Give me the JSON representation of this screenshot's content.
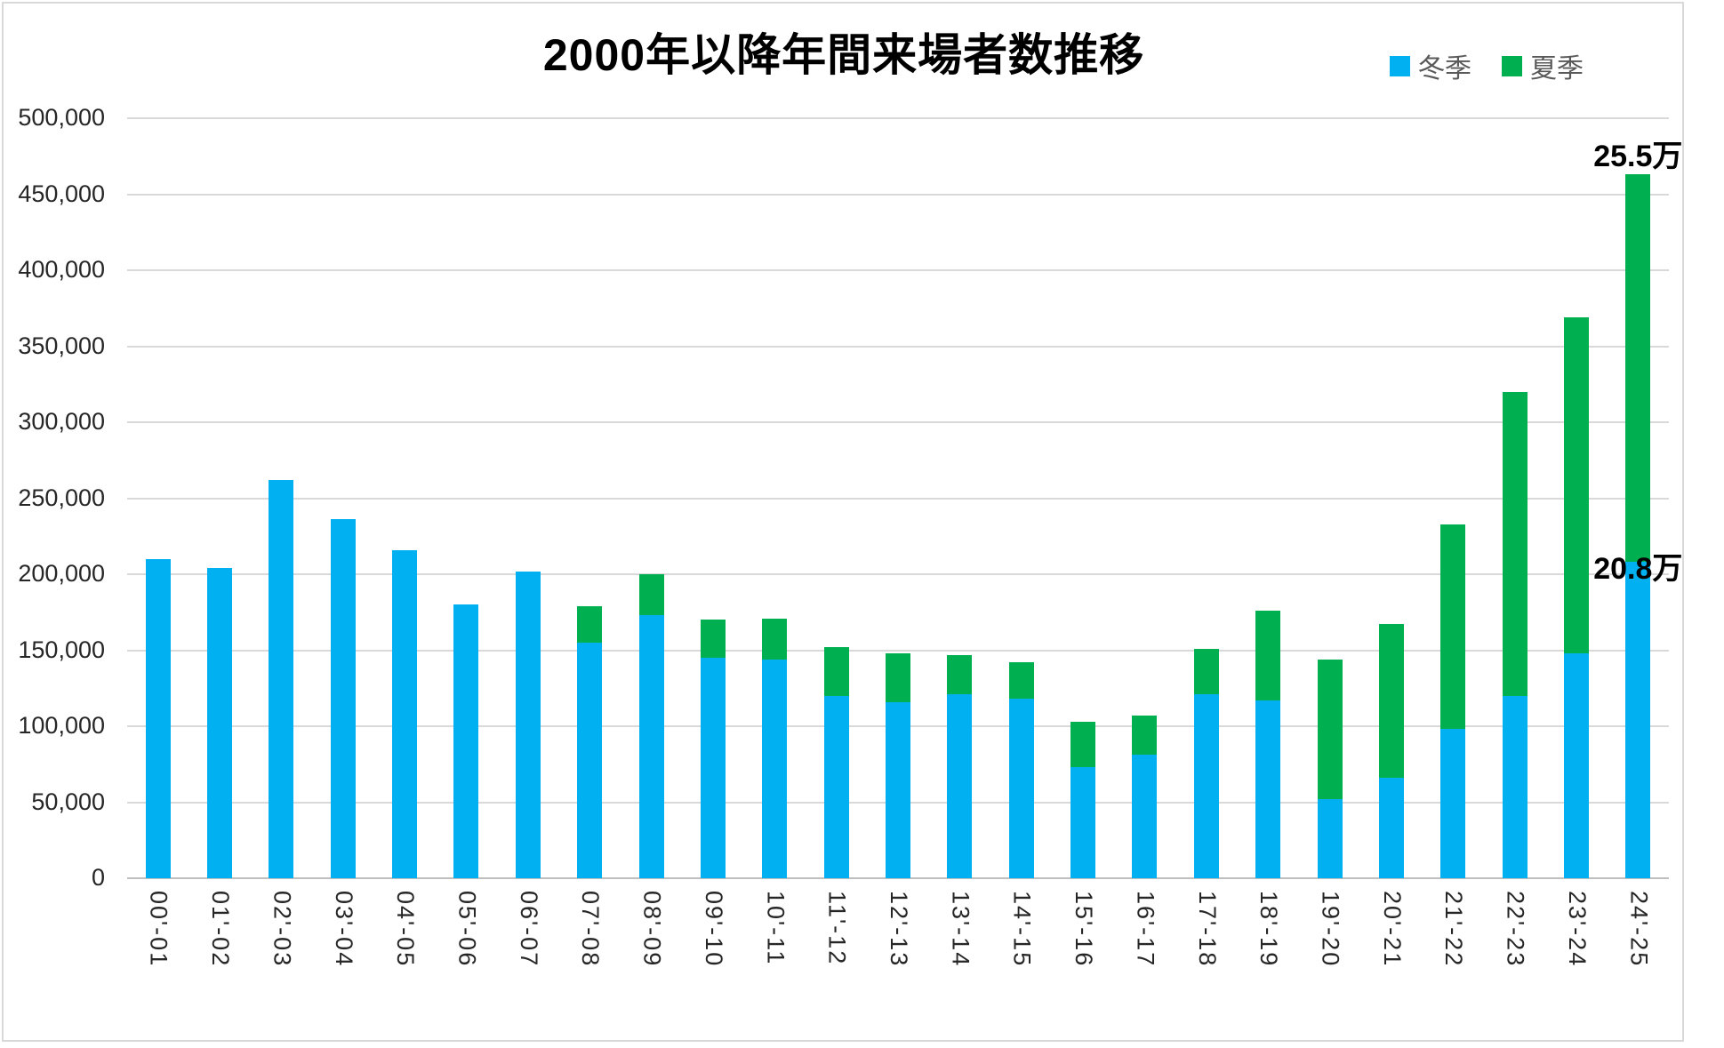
{
  "header": {
    "title": "2000年以降年間来場者数推移"
  },
  "legend": {
    "items": [
      {
        "label": "冬季",
        "color": "#00B0F0"
      },
      {
        "label": "夏季",
        "color": "#00B050"
      }
    ]
  },
  "colors": {
    "winter_blue": "#00B0F0",
    "summer_green": "#00B050",
    "gridline": "#D9D9D9",
    "axis_text": "#262626",
    "legend_text": "#595959"
  },
  "chart_data": {
    "type": "bar",
    "stacked": true,
    "title": "2000年以降年間来場者数推移",
    "xlabel": "",
    "ylabel": "",
    "ylim": [
      0,
      500000
    ],
    "ytick_step": 50000,
    "yticks": [
      "0",
      "50,000",
      "100,000",
      "150,000",
      "200,000",
      "250,000",
      "300,000",
      "350,000",
      "400,000",
      "450,000",
      "500,000"
    ],
    "grid": true,
    "legend_position": "top-right",
    "categories": [
      "00'-01",
      "01'-02",
      "02'-03",
      "03'-04",
      "04'-05",
      "05'-06",
      "06'-07",
      "07'-08",
      "08'-09",
      "09'-10",
      "10'-11",
      "11'-12",
      "12'-13",
      "13'-14",
      "14'-15",
      "15'-16",
      "16'-17",
      "17'-18",
      "18'-19",
      "19'-20",
      "20'-21",
      "21'-22",
      "22'-23",
      "23'-24",
      "24'-25"
    ],
    "series": [
      {
        "name": "冬季",
        "color": "#00B0F0",
        "values": [
          210000,
          204000,
          262000,
          236000,
          216000,
          180000,
          202000,
          155000,
          173000,
          145000,
          144000,
          120000,
          116000,
          121000,
          118000,
          73000,
          81000,
          121000,
          117000,
          52000,
          66000,
          98000,
          120000,
          148000,
          208000
        ]
      },
      {
        "name": "夏季",
        "color": "#00B050",
        "values": [
          0,
          0,
          0,
          0,
          0,
          0,
          0,
          24000,
          27000,
          25000,
          27000,
          32000,
          32000,
          26000,
          24000,
          30000,
          26000,
          30000,
          59000,
          92000,
          101000,
          135000,
          200000,
          221000,
          255000
        ]
      }
    ],
    "data_labels": [
      {
        "series": "夏季",
        "category": "24'-25",
        "text": "25.5万",
        "placement": "outside_end"
      },
      {
        "series": "冬季",
        "category": "24'-25",
        "text": "20.8万",
        "placement": "end_boundary"
      }
    ]
  }
}
